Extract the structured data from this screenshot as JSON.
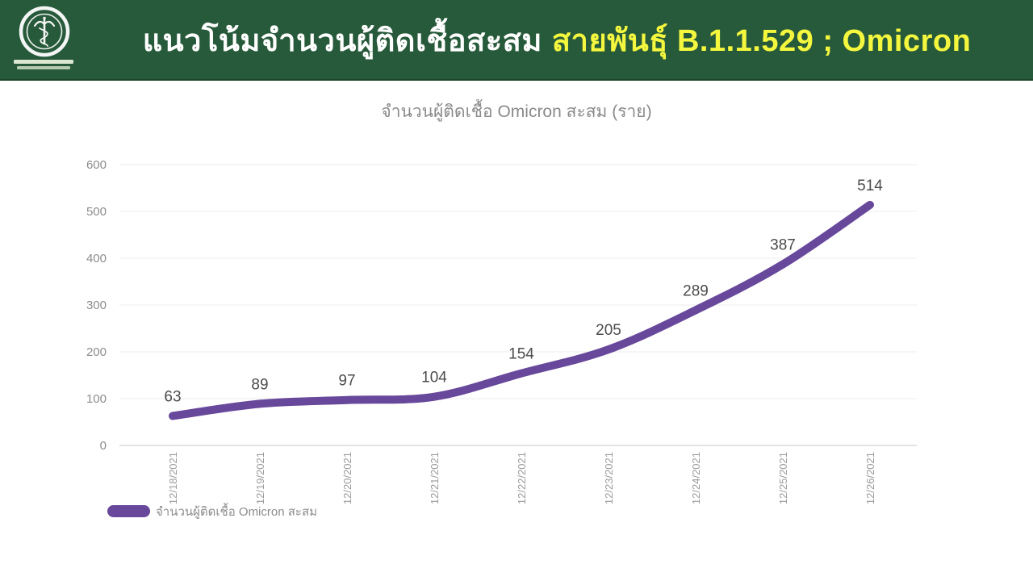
{
  "header": {
    "logo": "moph-seal",
    "title_main": "แนวโน้มจำนวนผู้ติดเชื้อสะสม",
    "title_highlight": "สายพันธุ์ B.1.1.529 ; Omicron",
    "colors": {
      "background": "#275a3a",
      "main_text": "#ffffff",
      "highlight_text": "#f4f73e"
    }
  },
  "chart_data": {
    "type": "line",
    "title": "จำนวนผู้ติดเชื้อ Omicron สะสม (ราย)",
    "categories": [
      "12/18/2021",
      "12/19/2021",
      "12/20/2021",
      "12/21/2021",
      "12/22/2021",
      "12/23/2021",
      "12/24/2021",
      "12/25/2021",
      "12/26/2021"
    ],
    "series": [
      {
        "name": "จำนวนผู้ติดเชื้อ Omicron สะสม",
        "values": [
          63,
          89,
          97,
          104,
          154,
          205,
          289,
          387,
          514
        ],
        "color": "#68489b"
      }
    ],
    "xlabel": "",
    "ylabel": "",
    "ylim": [
      0,
      600
    ],
    "yticks": [
      0,
      100,
      200,
      300,
      400,
      500,
      600
    ],
    "grid": true,
    "data_labels": true,
    "legend_position": "bottom-left",
    "colors": {
      "gridline": "#ececec",
      "axis_line": "#dcdcdc",
      "ytick_text": "#8c8c8c",
      "xtick_text": "#9b9b9b",
      "data_label_text": "#4c4c4c",
      "legend_text": "#8c8c8c",
      "title_text": "#8a8a8a"
    }
  }
}
